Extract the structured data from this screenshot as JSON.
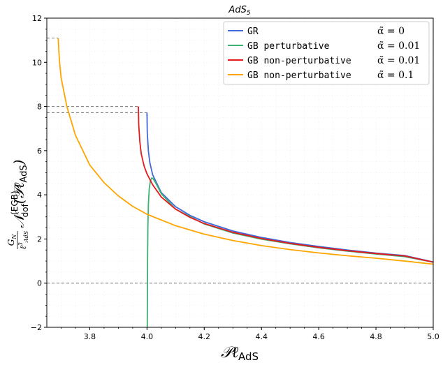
{
  "chart_data": {
    "type": "line",
    "title": "AdS",
    "title_sub": "5",
    "xlabel": {
      "main": "𝒫ℓ",
      "sub": "AdS"
    },
    "ylabel": {
      "frac_num": "G",
      "frac_num_sub": "N",
      "frac_den": "ℓ",
      "frac_den_sup": "3",
      "frac_den_sub": "AdS",
      "body": "𝒩",
      "body_sup": "(EGB)",
      "body_sub": "dof",
      "args": "(𝒫ℓ",
      "args_sub": "AdS",
      "close": ")"
    },
    "xlim": [
      3.65,
      5.0
    ],
    "ylim": [
      -2,
      12
    ],
    "xticks": [
      3.8,
      4.0,
      4.2,
      4.4,
      4.6,
      4.8,
      5.0
    ],
    "xtick_labels": [
      "3.8",
      "4.0",
      "4.2",
      "4.4",
      "4.6",
      "4.8",
      "5.0"
    ],
    "yticks": [
      -2,
      0,
      2,
      4,
      6,
      8,
      10,
      12
    ],
    "ytick_labels": [
      "−2",
      "0",
      "2",
      "4",
      "6",
      "8",
      "10",
      "12"
    ],
    "grid": false,
    "legend_position": "top-right",
    "series": [
      {
        "name": "GR",
        "alpha_label": "α̃ = 0",
        "color": "#4169d9",
        "x": [
          4.0,
          4.001,
          4.005,
          4.01,
          4.02,
          4.05,
          4.1,
          4.15,
          4.2,
          4.3,
          4.4,
          4.5,
          4.6,
          4.7,
          4.8,
          4.9,
          5.0
        ],
        "y": [
          7.72,
          6.8,
          5.97,
          5.45,
          4.9,
          4.1,
          3.46,
          3.07,
          2.78,
          2.36,
          2.07,
          1.84,
          1.66,
          1.5,
          1.36,
          1.25,
          0.96
        ]
      },
      {
        "name": "GB perturbative",
        "alpha_label": "α̃ = 0.01",
        "color": "#3cb371",
        "x": [
          4.001,
          4.0015,
          4.002,
          4.003,
          4.005,
          4.008,
          4.012,
          4.017,
          4.022,
          4.03,
          4.05,
          4.1,
          4.2,
          4.3,
          4.4,
          4.5,
          4.6,
          4.7,
          4.8,
          4.9,
          5.0
        ],
        "y": [
          -2.0,
          -0.5,
          1.0,
          2.5,
          3.6,
          4.3,
          4.65,
          4.77,
          4.72,
          4.55,
          4.05,
          3.35,
          2.68,
          2.27,
          1.99,
          1.78,
          1.6,
          1.45,
          1.32,
          1.2,
          0.95
        ]
      },
      {
        "name": "GB non-perturbative",
        "alpha_label": "α̃ = 0.01",
        "color": "#e41a1c",
        "x": [
          3.97,
          3.971,
          3.975,
          3.98,
          3.99,
          4.0,
          4.02,
          4.05,
          4.1,
          4.15,
          4.2,
          4.3,
          4.4,
          4.5,
          4.6,
          4.7,
          4.8,
          4.9,
          5.0
        ],
        "y": [
          8.0,
          7.2,
          6.4,
          5.85,
          5.3,
          4.95,
          4.45,
          3.9,
          3.35,
          2.98,
          2.7,
          2.3,
          2.02,
          1.8,
          1.62,
          1.47,
          1.34,
          1.23,
          0.95
        ]
      },
      {
        "name": "GB non-perturbative",
        "alpha_label": "α̃ = 0.1",
        "color": "#ffa500",
        "x": [
          3.69,
          3.692,
          3.695,
          3.7,
          3.72,
          3.75,
          3.8,
          3.85,
          3.9,
          3.95,
          4.0,
          4.1,
          4.2,
          4.3,
          4.4,
          4.5,
          4.6,
          4.7,
          4.8,
          4.9,
          5.0
        ],
        "y": [
          11.1,
          10.5,
          9.95,
          9.3,
          8.0,
          6.7,
          5.35,
          4.55,
          3.95,
          3.48,
          3.12,
          2.6,
          2.22,
          1.93,
          1.7,
          1.52,
          1.37,
          1.24,
          1.13,
          1.0,
          0.86
        ]
      }
    ],
    "reference_lines": [
      {
        "orientation": "horizontal",
        "y": 0,
        "x_from": 3.65,
        "x_to": 5.0
      },
      {
        "orientation": "horizontal",
        "y": 11.1,
        "x_from": 3.65,
        "x_to": 3.69
      },
      {
        "orientation": "horizontal",
        "y": 8.0,
        "x_from": 3.65,
        "x_to": 3.97
      },
      {
        "orientation": "horizontal",
        "y": 7.72,
        "x_from": 3.65,
        "x_to": 4.0
      }
    ]
  }
}
